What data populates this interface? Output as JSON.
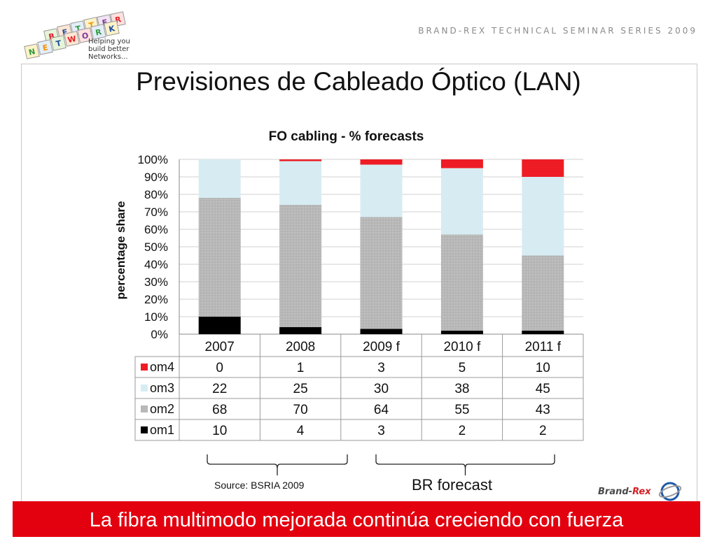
{
  "header": {
    "logo_letters": [
      "B",
      "E",
      "T",
      "T",
      "E",
      "R",
      "N",
      "E",
      "T",
      "W",
      "O",
      "R",
      "K"
    ],
    "logo_tag_line1": "Helping you",
    "logo_tag_line2": "build better Networks...",
    "series_title": "BRAND-REX TECHNICAL SEMINAR SERIES 2009"
  },
  "slide": {
    "title": "Previsiones de Cableado Óptico (LAN)",
    "source_label": "Source: BSRIA  2009",
    "forecast_label": "BR forecast",
    "brand_prefix": "Brand-",
    "brand_suffix": "Rex",
    "footer_text": "La fibra multimodo mejorada continúa creciendo con fuerza"
  },
  "colors": {
    "om4": "#ee1c25",
    "om3": "#d7ecf2",
    "om2": "#b8b8b8",
    "om1": "#000000",
    "footer_bg": "#e3000f"
  },
  "chart_data": {
    "type": "bar",
    "stacked": true,
    "title": "FO cabling  - % forecasts",
    "ylabel": "percentage share",
    "ylim": [
      0,
      100
    ],
    "yticks": [
      "0%",
      "10%",
      "20%",
      "30%",
      "40%",
      "50%",
      "60%",
      "70%",
      "80%",
      "90%",
      "100%"
    ],
    "grid": true,
    "categories": [
      "2007",
      "2008",
      "2009 f",
      "2010 f",
      "2011 f"
    ],
    "series": [
      {
        "name": "om1",
        "values": [
          10,
          4,
          3,
          2,
          2
        ]
      },
      {
        "name": "om2",
        "values": [
          68,
          70,
          64,
          55,
          43
        ]
      },
      {
        "name": "om3",
        "values": [
          22,
          25,
          30,
          38,
          45
        ]
      },
      {
        "name": "om4",
        "values": [
          0,
          1,
          3,
          5,
          10
        ]
      }
    ],
    "table_order": [
      "om4",
      "om3",
      "om2",
      "om1"
    ]
  }
}
